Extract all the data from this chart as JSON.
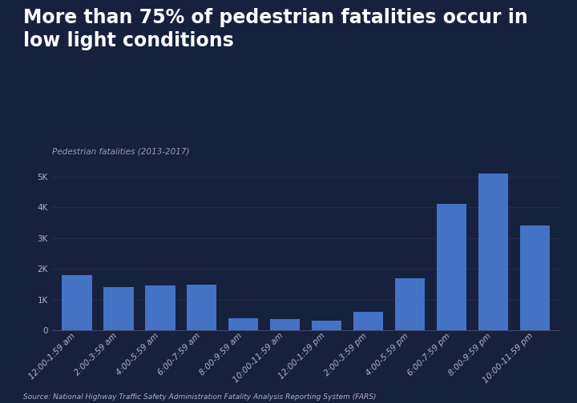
{
  "title": "More than 75% of pedestrian fatalities occur in\nlow light conditions",
  "subtitle": "Pedestrian fatalities (2013-2017)",
  "source": "Source: National Highway Traffic Safety Administration Fatality Analysis Reporting System (FARS)",
  "categories": [
    "12:00-1:59 am",
    "2:00-3:59 am",
    "4:00-5:59 am",
    "6:00-7:59 am",
    "8:00-9:59 am",
    "10:00-11:59 am",
    "12:00-1:59 pm",
    "2:00-3:59 pm",
    "4:00-5:59 pm",
    "6:00-7:59 pm",
    "8:00-9:59 pm",
    "10:00-11:59 pm"
  ],
  "values": [
    1800,
    1400,
    1450,
    1500,
    400,
    380,
    320,
    600,
    1700,
    4100,
    5100,
    3400
  ],
  "bar_color": "#4472C4",
  "background_color": "#16213e",
  "text_color": "#b0b0c0",
  "title_color": "#ffffff",
  "subtitle_color": "#9999aa",
  "grid_color": "#2a2a4a",
  "spine_color": "#444466",
  "ylim": [
    0,
    5500
  ],
  "yticks": [
    0,
    1000,
    2000,
    3000,
    4000,
    5000
  ],
  "ytick_labels": [
    "0",
    "1K",
    "2K",
    "3K",
    "4K",
    "5K"
  ],
  "title_fontsize": 17,
  "subtitle_fontsize": 7.5,
  "tick_fontsize": 7.5,
  "source_fontsize": 6.5
}
